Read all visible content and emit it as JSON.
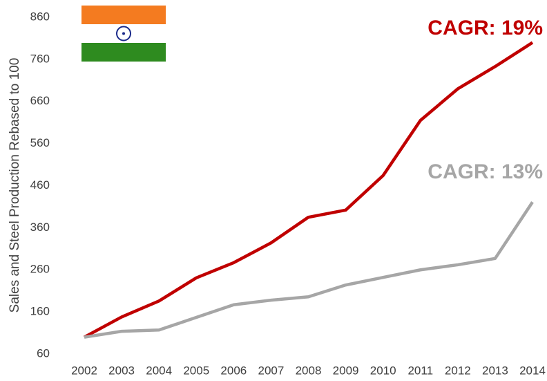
{
  "chart_data": {
    "type": "line",
    "ylabel": "Sales and Steel Production Rebased to 100",
    "categories": [
      "2002",
      "2003",
      "2004",
      "2005",
      "2006",
      "2007",
      "2008",
      "2009",
      "2010",
      "2011",
      "2012",
      "2013",
      "2014"
    ],
    "series": [
      {
        "color": "#c00000",
        "values": [
          100,
          148,
          186,
          241,
          277,
          324,
          385,
          402,
          484,
          615,
          690,
          743,
          800
        ]
      },
      {
        "color": "#a6a6a6",
        "values": [
          100,
          114,
          117,
          147,
          177,
          188,
          196,
          224,
          242,
          260,
          272,
          287,
          421
        ]
      }
    ],
    "annotations": [
      "CAGR: 19%",
      "CAGR: 13%"
    ],
    "ylim": [
      60,
      860
    ],
    "yticks": [
      60,
      160,
      260,
      360,
      460,
      560,
      660,
      760,
      860
    ],
    "grid": false
  }
}
